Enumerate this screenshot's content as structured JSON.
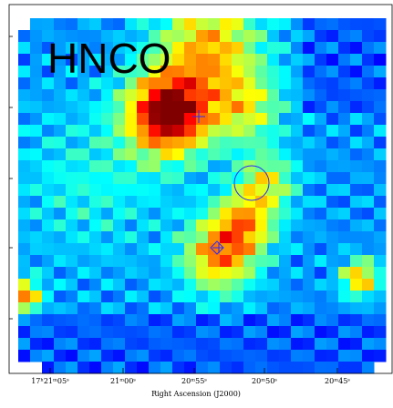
{
  "map": {
    "label": "HNCO",
    "x_axis_label": "Right Ascension (J2000)",
    "x_tick_labels": [
      "17ʰ21ᵐ05ˢ",
      "21ᵐ00ˢ",
      "20ᵐ55ˢ",
      "20ᵐ50ˢ",
      "20ᵐ45ˢ"
    ]
  }
}
